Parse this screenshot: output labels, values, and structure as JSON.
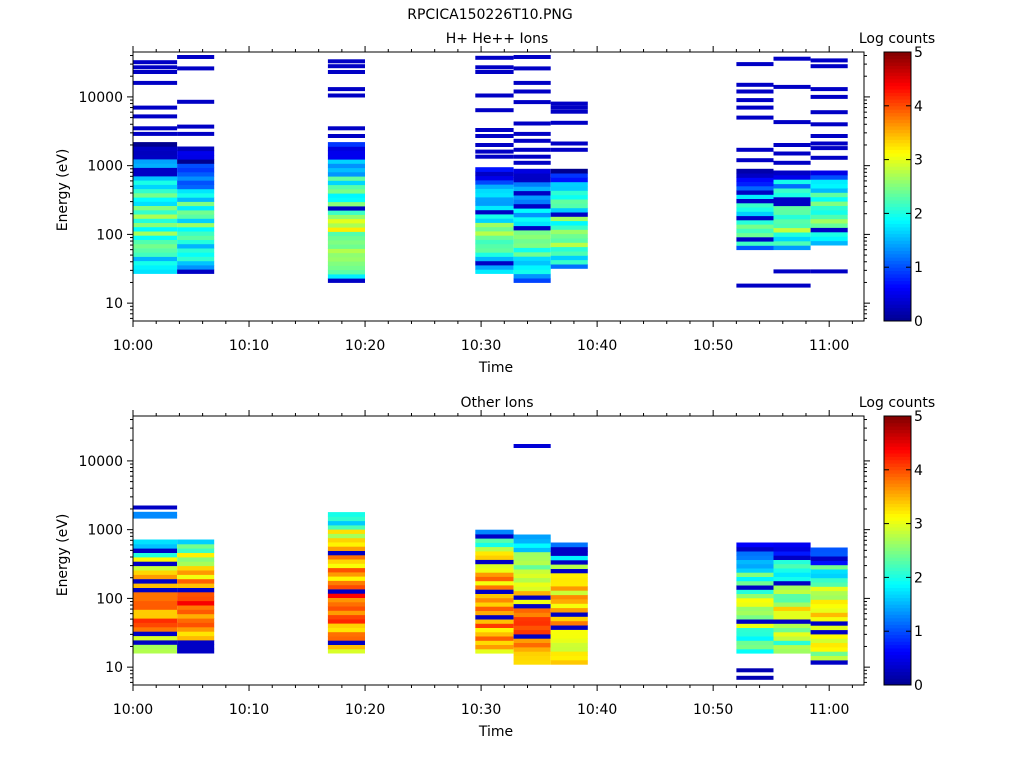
{
  "figure_title": "RPCICA150226T10.PNG",
  "colormap": [
    "#00008f",
    "#0000ff",
    "#0080ff",
    "#00ffff",
    "#80ff80",
    "#ffff00",
    "#ff8000",
    "#ff0000",
    "#800000"
  ],
  "chart_data": [
    {
      "type": "heatmap",
      "title": "H+ He++ Ions",
      "xlabel": "Time",
      "ylabel": "Energy (eV)",
      "x_ticks": [
        "10:00",
        "10:10",
        "10:20",
        "10:30",
        "10:40",
        "10:50",
        "11:00"
      ],
      "y_ticks": [
        "10",
        "100",
        "1000",
        "10000"
      ],
      "y_scale": "log",
      "ylim": [
        5.5,
        45000
      ],
      "xlim_minutes": [
        0,
        63
      ],
      "colorbar": {
        "label": "Log counts",
        "ticks": [
          "0",
          "1",
          "2",
          "3",
          "4",
          "5"
        ],
        "range": [
          0,
          5
        ]
      },
      "columns": [
        {
          "t0": 0.0,
          "t1": 3.8,
          "band": [
            27,
            2200
          ],
          "mean": 1.6,
          "lines": [
            [
              32000,
              0.3
            ],
            [
              27000,
              0.3
            ],
            [
              23000,
              0.3
            ],
            [
              16000,
              0.3
            ],
            [
              7000,
              0.3
            ],
            [
              5200,
              0.3
            ],
            [
              3500,
              0.3
            ],
            [
              2900,
              0.3
            ]
          ]
        },
        {
          "t0": 3.8,
          "t1": 7.0,
          "band": [
            27,
            1900
          ],
          "mean": 1.5,
          "lines": [
            [
              38000,
              0.3
            ],
            [
              26000,
              0.3
            ],
            [
              8500,
              0.3
            ],
            [
              3700,
              0.3
            ],
            [
              2900,
              0.3
            ]
          ]
        },
        {
          "t0": 16.8,
          "t1": 20.0,
          "band": [
            20,
            2200
          ],
          "mean": 2.0,
          "lines": [
            [
              33000,
              0.3
            ],
            [
              28000,
              0.3
            ],
            [
              23000,
              0.3
            ],
            [
              13000,
              0.3
            ],
            [
              10500,
              0.3
            ],
            [
              3500,
              0.3
            ],
            [
              2700,
              0.3
            ]
          ]
        },
        {
          "t0": 29.5,
          "t1": 32.8,
          "band": [
            27,
            950
          ],
          "mean": 1.6,
          "lines": [
            [
              37000,
              0.3
            ],
            [
              27000,
              0.3
            ],
            [
              23000,
              0.3
            ],
            [
              10500,
              0.3
            ],
            [
              6400,
              0.3
            ],
            [
              3300,
              0.3
            ],
            [
              2700,
              0.3
            ],
            [
              2000,
              0.3
            ],
            [
              1600,
              0.3
            ],
            [
              1350,
              0.3
            ]
          ]
        },
        {
          "t0": 32.8,
          "t1": 36.0,
          "band": [
            20,
            900
          ],
          "mean": 1.5,
          "lines": [
            [
              38000,
              0.3
            ],
            [
              26000,
              0.3
            ],
            [
              16000,
              0.3
            ],
            [
              12000,
              0.3
            ],
            [
              8400,
              0.3
            ],
            [
              4100,
              0.3
            ],
            [
              2900,
              0.3
            ],
            [
              2300,
              0.3
            ],
            [
              1700,
              0.3
            ],
            [
              1350,
              0.3
            ],
            [
              1100,
              0.3
            ]
          ]
        },
        {
          "t0": 36.0,
          "t1": 39.2,
          "band": [
            32,
            900
          ],
          "mean": 1.7,
          "lines": [
            [
              8000,
              0.3
            ],
            [
              7000,
              0.3
            ],
            [
              6100,
              0.3
            ],
            [
              4200,
              0.3
            ],
            [
              2100,
              0.3
            ],
            [
              1700,
              0.3
            ]
          ]
        },
        {
          "t0": 52.0,
          "t1": 55.2,
          "band": [
            60,
            900
          ],
          "mean": 1.5,
          "lines": [
            [
              30000,
              0.3
            ],
            [
              15000,
              0.3
            ],
            [
              12000,
              0.3
            ],
            [
              9000,
              0.3
            ],
            [
              7000,
              0.3
            ],
            [
              5000,
              0.3
            ],
            [
              1700,
              0.3
            ],
            [
              1200,
              0.3
            ],
            [
              18,
              0.3
            ]
          ]
        },
        {
          "t0": 55.2,
          "t1": 58.4,
          "band": [
            60,
            850
          ],
          "mean": 1.9,
          "lines": [
            [
              36000,
              0.3
            ],
            [
              14000,
              0.3
            ],
            [
              4300,
              0.3
            ],
            [
              2000,
              0.3
            ],
            [
              1500,
              0.3
            ],
            [
              1100,
              0.3
            ],
            [
              29,
              0.3
            ],
            [
              18,
              0.3
            ]
          ]
        },
        {
          "t0": 58.4,
          "t1": 61.6,
          "band": [
            70,
            850
          ],
          "mean": 1.7,
          "lines": [
            [
              34000,
              0.3
            ],
            [
              28000,
              0.3
            ],
            [
              13000,
              0.3
            ],
            [
              10000,
              0.3
            ],
            [
              6000,
              0.3
            ],
            [
              4000,
              0.3
            ],
            [
              2700,
              0.3
            ],
            [
              2100,
              0.3
            ],
            [
              1800,
              0.3
            ],
            [
              1300,
              0.3
            ],
            [
              29,
              0.3
            ]
          ]
        }
      ]
    },
    {
      "type": "heatmap",
      "title": "Other Ions",
      "xlabel": "Time",
      "ylabel": "Energy (eV)",
      "x_ticks": [
        "10:00",
        "10:10",
        "10:20",
        "10:30",
        "10:40",
        "10:50",
        "11:00"
      ],
      "y_ticks": [
        "10",
        "100",
        "1000",
        "10000"
      ],
      "y_scale": "log",
      "ylim": [
        5.5,
        45000
      ],
      "xlim_minutes": [
        0,
        63
      ],
      "colorbar": {
        "label": "Log counts",
        "ticks": [
          "0",
          "1",
          "2",
          "3",
          "4",
          "5"
        ],
        "range": [
          0,
          5
        ]
      },
      "columns": [
        {
          "t0": 0.0,
          "t1": 3.8,
          "band": [
            16,
            720
          ],
          "mean": 3.0,
          "lines": [
            [
              2100,
              0.3
            ],
            [
              1700,
              1.3
            ],
            [
              1550,
              1.3
            ]
          ]
        },
        {
          "t0": 3.8,
          "t1": 7.0,
          "band": [
            16,
            720
          ],
          "mean": 3.3,
          "lines": []
        },
        {
          "t0": 16.8,
          "t1": 20.0,
          "band": [
            16,
            1800
          ],
          "mean": 3.2,
          "lines": []
        },
        {
          "t0": 29.5,
          "t1": 32.8,
          "band": [
            16,
            1000
          ],
          "mean": 3.1,
          "lines": []
        },
        {
          "t0": 32.8,
          "t1": 36.0,
          "band": [
            11,
            850
          ],
          "mean": 3.0,
          "lines": [
            [
              16500,
              0.4
            ]
          ]
        },
        {
          "t0": 36.0,
          "t1": 39.2,
          "band": [
            11,
            650
          ],
          "mean": 3.0,
          "lines": []
        },
        {
          "t0": 52.0,
          "t1": 55.2,
          "band": [
            16,
            650
          ],
          "mean": 2.0,
          "lines": [
            [
              9,
              0.2
            ],
            [
              7,
              0.2
            ]
          ]
        },
        {
          "t0": 55.2,
          "t1": 58.4,
          "band": [
            16,
            650
          ],
          "mean": 2.2,
          "lines": []
        },
        {
          "t0": 58.4,
          "t1": 61.6,
          "band": [
            11,
            550
          ],
          "mean": 2.3,
          "lines": []
        }
      ]
    }
  ]
}
